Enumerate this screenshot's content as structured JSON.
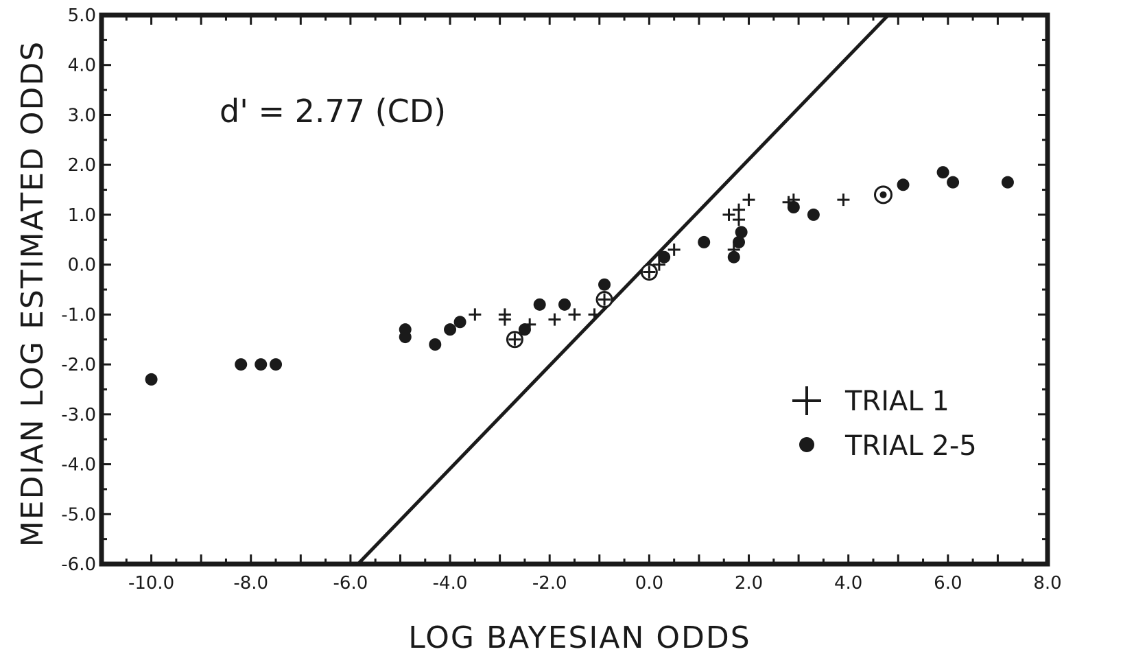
{
  "chart_data": {
    "type": "scatter",
    "xlabel": "LOG BAYESIAN ODDS",
    "ylabel": "MEDIAN LOG ESTIMATED ODDS",
    "xlim": [
      -11.0,
      8.0
    ],
    "ylim": [
      -6.0,
      5.0
    ],
    "x_ticks": [
      "-10.0",
      "-8.0",
      "-6.0",
      "-4.0",
      "-2.0",
      "0.0",
      "2.0",
      "4.0",
      "6.0",
      "8.0"
    ],
    "y_ticks": [
      "5.0",
      "4.0",
      "3.0",
      "2.0",
      "1.0",
      "0.0",
      "-1.0",
      "-2.0",
      "-3.0",
      "-4.0",
      "-5.0",
      "-6.0"
    ],
    "annotation": "d' = 2.77 (CD)",
    "grid": false,
    "legend_position": "right",
    "reference_line": [
      [
        -5.85,
        -6.0
      ],
      [
        4.8,
        5.0
      ]
    ],
    "series": [
      {
        "name": "TRIAL 1",
        "marker": "plus",
        "points": [
          [
            -3.5,
            -1.0
          ],
          [
            -2.9,
            -1.0
          ],
          [
            -2.9,
            -1.1
          ],
          [
            -2.4,
            -1.2
          ],
          [
            -1.9,
            -1.1
          ],
          [
            -1.5,
            -1.0
          ],
          [
            -1.1,
            -1.0
          ],
          [
            -0.9,
            -0.7
          ],
          [
            -2.7,
            -1.5
          ],
          [
            0.0,
            -0.1
          ],
          [
            0.2,
            0.0
          ],
          [
            0.5,
            0.3
          ],
          [
            1.6,
            1.0
          ],
          [
            1.8,
            1.1
          ],
          [
            1.8,
            0.9
          ],
          [
            1.7,
            0.3
          ],
          [
            2.0,
            1.3
          ],
          [
            2.8,
            1.25
          ],
          [
            2.9,
            1.3
          ],
          [
            3.9,
            1.3
          ]
        ]
      },
      {
        "name": "TRIAL 2-5",
        "marker": "dot",
        "points": [
          [
            -10.0,
            -2.3
          ],
          [
            -8.2,
            -2.0
          ],
          [
            -7.8,
            -2.0
          ],
          [
            -7.5,
            -2.0
          ],
          [
            -4.9,
            -1.3
          ],
          [
            -4.9,
            -1.45
          ],
          [
            -4.3,
            -1.6
          ],
          [
            -4.0,
            -1.3
          ],
          [
            -3.8,
            -1.15
          ],
          [
            -2.5,
            -1.3
          ],
          [
            -2.2,
            -0.8
          ],
          [
            -1.7,
            -0.8
          ],
          [
            -0.9,
            -0.4
          ],
          [
            0.3,
            0.15
          ],
          [
            1.1,
            0.45
          ],
          [
            1.7,
            0.15
          ],
          [
            1.8,
            0.45
          ],
          [
            1.85,
            0.65
          ],
          [
            2.9,
            1.15
          ],
          [
            3.3,
            1.0
          ],
          [
            5.1,
            1.6
          ],
          [
            5.9,
            1.85
          ],
          [
            6.1,
            1.65
          ],
          [
            7.2,
            1.65
          ]
        ]
      },
      {
        "name": "",
        "marker": "circled-plus",
        "points": [
          [
            -2.7,
            -1.5
          ],
          [
            -0.9,
            -0.7
          ],
          [
            0.0,
            -0.15
          ]
        ]
      },
      {
        "name": "",
        "marker": "circled-dot",
        "points": [
          [
            4.7,
            1.4
          ]
        ]
      }
    ]
  }
}
